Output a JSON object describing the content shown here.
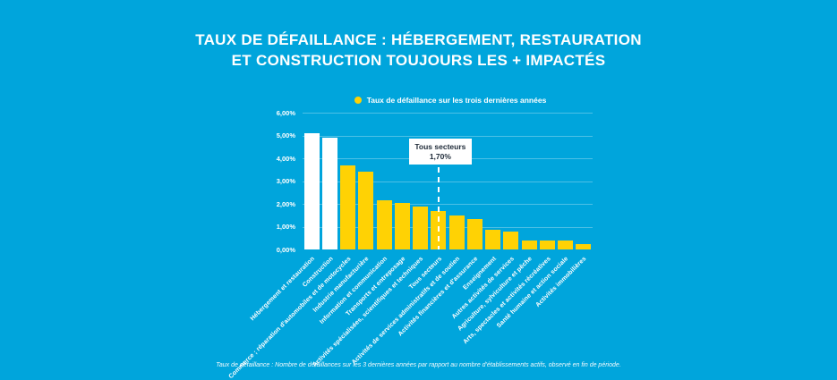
{
  "title": {
    "line1": "TAUX DE DÉFAILLANCE : HÉBERGEMENT, RESTAURATION",
    "line2": "ET CONSTRUCTION TOUJOURS LES + IMPACTÉS"
  },
  "legend": {
    "label": "Taux de défaillance sur les trois dernières années"
  },
  "footer": "Taux de défaillance : Nombre de défaillances sur les 3 dernières années par rapport au nombre d'établissements actifs, observé en fin de période.",
  "colors": {
    "background": "#00A5DC",
    "bar_default": "#FFD204",
    "bar_highlight": "#FFFFFF",
    "annotation_text": "#1E2A38",
    "text": "#FFFFFF"
  },
  "chart_data": {
    "type": "bar",
    "title": "Taux de défaillance : Hébergement, restauration et construction toujours les + impactés",
    "legend_entries": [
      "Taux de défaillance sur les trois dernières années"
    ],
    "legend_position": "top",
    "grid": true,
    "ylim": [
      0,
      6
    ],
    "yticks": [
      {
        "value": 0,
        "label": "0,00%"
      },
      {
        "value": 1,
        "label": "1,00%"
      },
      {
        "value": 2,
        "label": "2,00%"
      },
      {
        "value": 3,
        "label": "3,00%"
      },
      {
        "value": 4,
        "label": "4,00%"
      },
      {
        "value": 5,
        "label": "5,00%"
      },
      {
        "value": 6,
        "label": "6,00%"
      }
    ],
    "categories": [
      "Hébergement et restauration",
      "Construction",
      "Commerce ; réparation d'automobiles et de motocycles",
      "Industrie manufacturière",
      "Information et communication",
      "Transports et entreposage",
      "Activités spécialisées, scientifiques et techniques",
      "Tous secteurs",
      "Activités de services administratifs et de soutien",
      "Activités financières et d'assurance",
      "Enseignement",
      "Autres activités de services",
      "Agriculture, sylviculture et pêche",
      "Arts, spectacles et activités récréatives",
      "Santé humaine et action sociale",
      "Activités immobilières"
    ],
    "values": [
      5.1,
      4.9,
      3.7,
      3.4,
      2.15,
      2.05,
      1.9,
      1.7,
      1.5,
      1.35,
      0.85,
      0.8,
      0.4,
      0.4,
      0.4,
      0.25
    ],
    "highlight_indices": [
      0,
      1
    ],
    "annotation": {
      "label": "Tous secteurs",
      "value": "1,70%",
      "category_index": 7
    }
  }
}
